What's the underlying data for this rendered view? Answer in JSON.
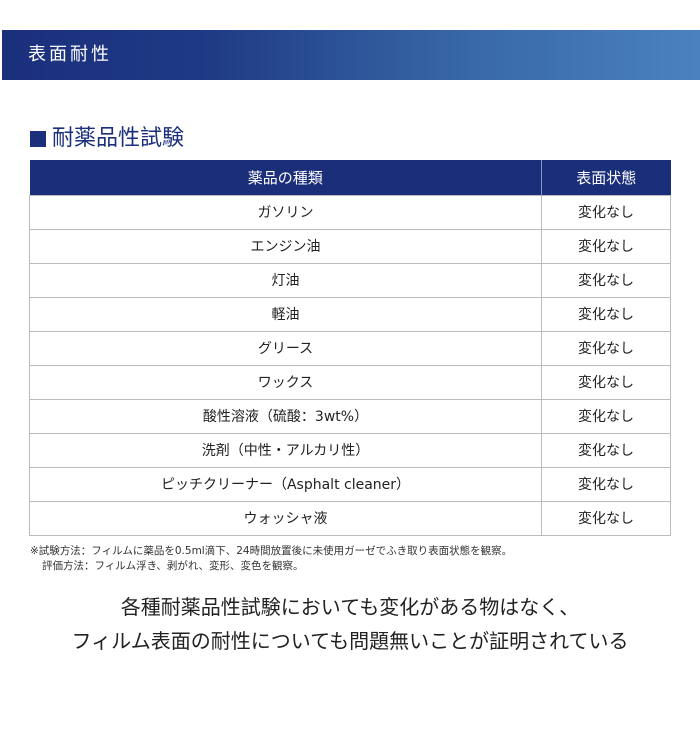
{
  "banner": {
    "title": "表面耐性"
  },
  "section": {
    "title": "耐薬品性試験"
  },
  "table": {
    "headers": [
      "薬品の種類",
      "表面状態"
    ],
    "rows": [
      [
        "ガソリン",
        "変化なし"
      ],
      [
        "エンジン油",
        "変化なし"
      ],
      [
        "灯油",
        "変化なし"
      ],
      [
        "軽油",
        "変化なし"
      ],
      [
        "グリース",
        "変化なし"
      ],
      [
        "ワックス",
        "変化なし"
      ],
      [
        "酸性溶液（硫酸：3wt%）",
        "変化なし"
      ],
      [
        "洗剤（中性・アルカリ性）",
        "変化なし"
      ],
      [
        "ピッチクリーナー（Asphalt cleaner）",
        "変化なし"
      ],
      [
        "ウォッシャ液",
        "変化なし"
      ]
    ]
  },
  "notes": [
    "※試験方法：フィルムに薬品を0.5ml滴下、24時間放置後に未使用ガーゼでふき取り表面状態を観察。",
    "評価方法：フィルム浮き、剥がれ、変形、変色を観察。"
  ],
  "summary": [
    "各種耐薬品性試験においても変化がある物はなく、",
    "フィルム表面の耐性についても問題無いことが証明されている"
  ],
  "colors": {
    "navy": "#1b2e7a",
    "gradient_end": "#4a82bf"
  }
}
